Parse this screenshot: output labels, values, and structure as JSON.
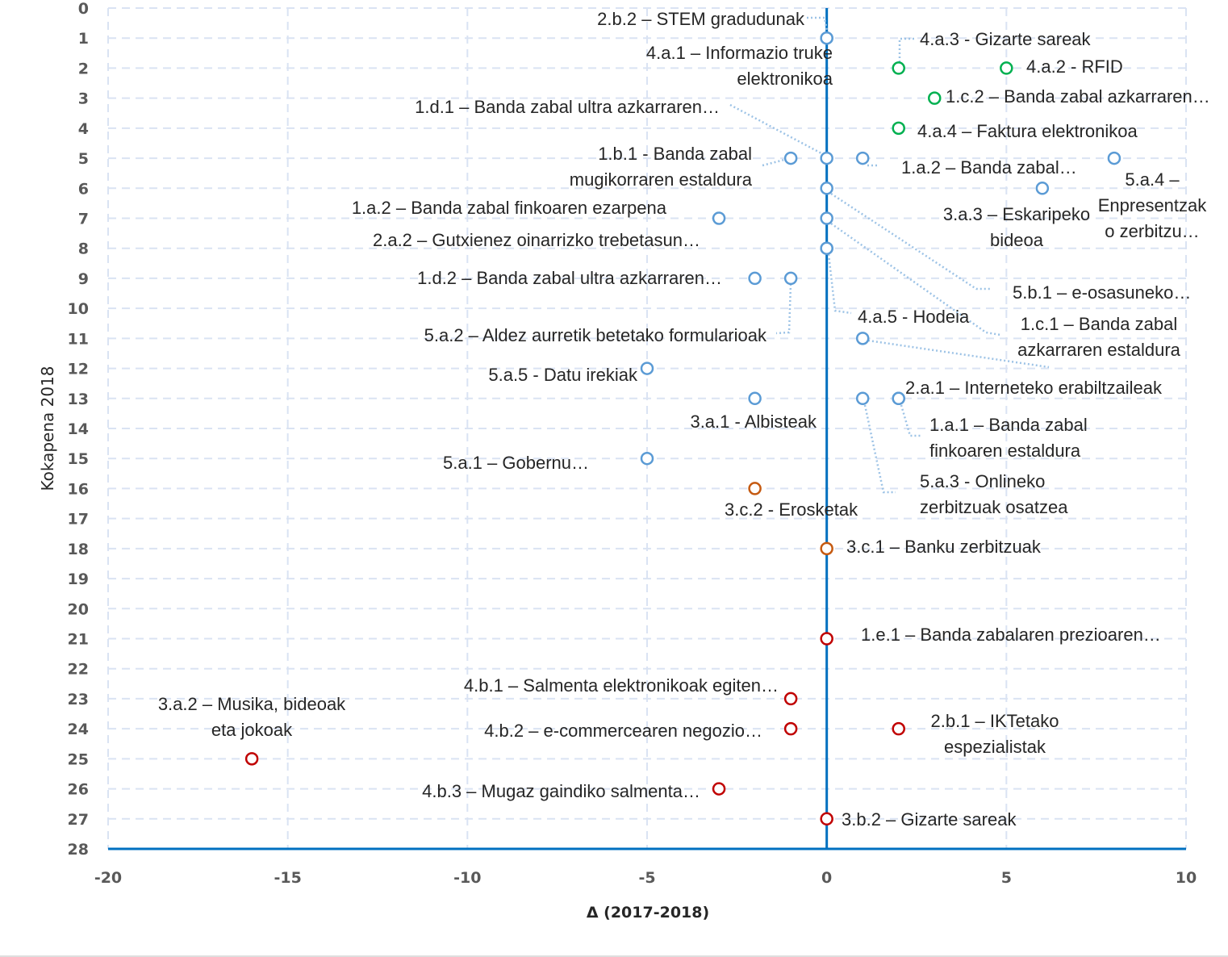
{
  "chart_data": {
    "type": "scatter",
    "xlabel": "Δ (2017-2018)",
    "ylabel": "Kokapena 2018",
    "xlim": [
      -20,
      10
    ],
    "ylim": [
      0,
      28
    ],
    "y_reversed": true,
    "x_ticks": [
      "-20",
      "-15",
      "-10",
      "-5",
      "0",
      "5",
      "10"
    ],
    "y_ticks": [
      "0",
      "1",
      "2",
      "3",
      "4",
      "5",
      "6",
      "7",
      "8",
      "9",
      "10",
      "11",
      "12",
      "13",
      "14",
      "15",
      "16",
      "17",
      "18",
      "19",
      "20",
      "21",
      "22",
      "23",
      "24",
      "25",
      "26",
      "27",
      "28"
    ],
    "grid": true,
    "colors": {
      "blue": "#5b9bd5",
      "green": "#00b050",
      "orange": "#c55a11",
      "red": "#c00000",
      "axis": "#0070c0",
      "grid": "#dae3f3"
    },
    "points": [
      {
        "x": 0,
        "y": 1,
        "group": "blue",
        "label": [
          "2.b.2 – STEM gradudunak"
        ]
      },
      {
        "x": 0,
        "y": 1,
        "group": "blue",
        "label": [
          "4.a.1 – Informazio truke",
          "elektronikoa"
        ]
      },
      {
        "x": 2,
        "y": 2,
        "group": "green",
        "label": [
          "4.a.3 - Gizarte sareak"
        ]
      },
      {
        "x": 5,
        "y": 2,
        "group": "green",
        "label": [
          "4.a.2 - RFID"
        ]
      },
      {
        "x": 3,
        "y": 3,
        "group": "green",
        "label": [
          "1.c.2 – Banda zabal azkarraren…"
        ]
      },
      {
        "x": 2,
        "y": 4,
        "group": "green",
        "label": [
          "4.a.4 – Faktura elektronikoa"
        ]
      },
      {
        "x": -1,
        "y": 5,
        "group": "blue",
        "label": [
          "1.b.1 - Banda zabal",
          "mugikorraren estaldura"
        ]
      },
      {
        "x": 0,
        "y": 5,
        "group": "blue",
        "label": [
          "1.d.1 – Banda zabal ultra azkarraren…"
        ]
      },
      {
        "x": 1,
        "y": 5,
        "group": "blue",
        "label": [
          "1.a.2 – Banda zabal…"
        ]
      },
      {
        "x": 8,
        "y": 5,
        "group": "blue",
        "label": [
          "5.a.4 –",
          "Enpresentzak",
          "o zerbitzu…"
        ]
      },
      {
        "x": 6,
        "y": 6,
        "group": "blue",
        "label": [
          "3.a.3 – Eskaripeko",
          "bideoa"
        ]
      },
      {
        "x": 0,
        "y": 6,
        "group": "blue",
        "label": [
          "5.b.1 – e-osasuneko…"
        ]
      },
      {
        "x": -3,
        "y": 7,
        "group": "blue",
        "label": [
          "1.a.2 – Banda zabal finkoaren ezarpena"
        ]
      },
      {
        "x": 0,
        "y": 7,
        "group": "blue",
        "label": [
          "1.c.1 – Banda zabal",
          "azkarraren estaldura"
        ]
      },
      {
        "x": 0,
        "y": 8,
        "group": "blue",
        "label": [
          "2.a.2 – Gutxienez oinarrizko trebetasun…"
        ]
      },
      {
        "x": 0,
        "y": 8,
        "group": "blue",
        "label": [
          "4.a.5 - Hodeia"
        ]
      },
      {
        "x": -2,
        "y": 9,
        "group": "blue",
        "label": [
          "1.d.2 – Banda zabal ultra azkarraren…"
        ]
      },
      {
        "x": -1,
        "y": 9,
        "group": "blue",
        "label": [
          "5.a.2 – Aldez aurretik betetako formularioak"
        ]
      },
      {
        "x": 1,
        "y": 11,
        "group": "blue",
        "label": []
      },
      {
        "x": -5,
        "y": 12,
        "group": "blue",
        "label": [
          "5.a.5 - Datu irekiak"
        ]
      },
      {
        "x": -2,
        "y": 13,
        "group": "blue",
        "label": [
          "3.a.1 - Albisteak"
        ]
      },
      {
        "x": 1,
        "y": 13,
        "group": "blue",
        "label": [
          "5.a.3 -  Onlineko",
          "zerbitzuak osatzea"
        ]
      },
      {
        "x": 2,
        "y": 13,
        "group": "blue",
        "label": [
          "2.a.1 – Interneteko erabiltzaileak"
        ]
      },
      {
        "x": 2,
        "y": 13,
        "group": "blue",
        "label": [
          "1.a.1 – Banda zabal",
          "finkoaren estaldura"
        ]
      },
      {
        "x": -5,
        "y": 15,
        "group": "blue",
        "label": [
          "5.a.1 – Gobernu…"
        ]
      },
      {
        "x": -2,
        "y": 16,
        "group": "orange",
        "label": [
          "3.c.2 - Erosketak"
        ]
      },
      {
        "x": 0,
        "y": 18,
        "group": "orange",
        "label": [
          "3.c.1 – Banku zerbitzuak"
        ]
      },
      {
        "x": 0,
        "y": 21,
        "group": "red",
        "label": [
          "1.e.1 – Banda zabalaren prezioaren…"
        ]
      },
      {
        "x": -1,
        "y": 23,
        "group": "red",
        "label": [
          "4.b.1 – Salmenta elektronikoak egiten…"
        ]
      },
      {
        "x": -1,
        "y": 24,
        "group": "red",
        "label": [
          "4.b.2 – e-commercearen negozio…"
        ]
      },
      {
        "x": 2,
        "y": 24,
        "group": "red",
        "label": [
          "2.b.1 – IKTetako",
          "espezialistak"
        ]
      },
      {
        "x": -16,
        "y": 25,
        "group": "red",
        "label": [
          "3.a.2 – Musika, bideoak",
          "eta jokoak"
        ]
      },
      {
        "x": -3,
        "y": 26,
        "group": "red",
        "label": [
          "4.b.3 – Mugaz gaindiko salmenta…"
        ]
      },
      {
        "x": 0,
        "y": 27,
        "group": "red",
        "label": [
          "3.b.2 – Gizarte sareak"
        ]
      }
    ]
  }
}
